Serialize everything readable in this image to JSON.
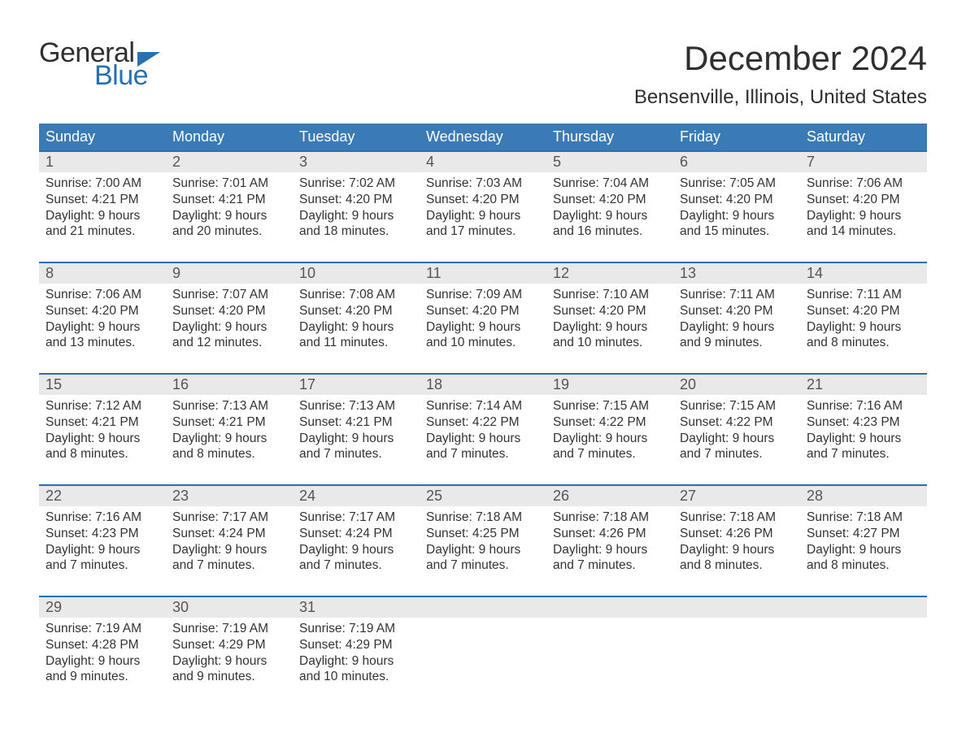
{
  "brand": {
    "part1": "General",
    "part2": "Blue",
    "flag_color": "#2a6fb0"
  },
  "header": {
    "month_title": "December 2024",
    "location": "Bensenville, Illinois, United States"
  },
  "colors": {
    "header_bg": "#3a7ab5",
    "week_border": "#2a6fb0",
    "daynum_bg": "#e9e9e9",
    "text": "#333333",
    "page_bg": "#ffffff"
  },
  "dow": [
    "Sunday",
    "Monday",
    "Tuesday",
    "Wednesday",
    "Thursday",
    "Friday",
    "Saturday"
  ],
  "weeks": [
    [
      {
        "n": "1",
        "sr": "Sunrise: 7:00 AM",
        "ss": "Sunset: 4:21 PM",
        "d1": "Daylight: 9 hours",
        "d2": "and 21 minutes."
      },
      {
        "n": "2",
        "sr": "Sunrise: 7:01 AM",
        "ss": "Sunset: 4:21 PM",
        "d1": "Daylight: 9 hours",
        "d2": "and 20 minutes."
      },
      {
        "n": "3",
        "sr": "Sunrise: 7:02 AM",
        "ss": "Sunset: 4:20 PM",
        "d1": "Daylight: 9 hours",
        "d2": "and 18 minutes."
      },
      {
        "n": "4",
        "sr": "Sunrise: 7:03 AM",
        "ss": "Sunset: 4:20 PM",
        "d1": "Daylight: 9 hours",
        "d2": "and 17 minutes."
      },
      {
        "n": "5",
        "sr": "Sunrise: 7:04 AM",
        "ss": "Sunset: 4:20 PM",
        "d1": "Daylight: 9 hours",
        "d2": "and 16 minutes."
      },
      {
        "n": "6",
        "sr": "Sunrise: 7:05 AM",
        "ss": "Sunset: 4:20 PM",
        "d1": "Daylight: 9 hours",
        "d2": "and 15 minutes."
      },
      {
        "n": "7",
        "sr": "Sunrise: 7:06 AM",
        "ss": "Sunset: 4:20 PM",
        "d1": "Daylight: 9 hours",
        "d2": "and 14 minutes."
      }
    ],
    [
      {
        "n": "8",
        "sr": "Sunrise: 7:06 AM",
        "ss": "Sunset: 4:20 PM",
        "d1": "Daylight: 9 hours",
        "d2": "and 13 minutes."
      },
      {
        "n": "9",
        "sr": "Sunrise: 7:07 AM",
        "ss": "Sunset: 4:20 PM",
        "d1": "Daylight: 9 hours",
        "d2": "and 12 minutes."
      },
      {
        "n": "10",
        "sr": "Sunrise: 7:08 AM",
        "ss": "Sunset: 4:20 PM",
        "d1": "Daylight: 9 hours",
        "d2": "and 11 minutes."
      },
      {
        "n": "11",
        "sr": "Sunrise: 7:09 AM",
        "ss": "Sunset: 4:20 PM",
        "d1": "Daylight: 9 hours",
        "d2": "and 10 minutes."
      },
      {
        "n": "12",
        "sr": "Sunrise: 7:10 AM",
        "ss": "Sunset: 4:20 PM",
        "d1": "Daylight: 9 hours",
        "d2": "and 10 minutes."
      },
      {
        "n": "13",
        "sr": "Sunrise: 7:11 AM",
        "ss": "Sunset: 4:20 PM",
        "d1": "Daylight: 9 hours",
        "d2": "and 9 minutes."
      },
      {
        "n": "14",
        "sr": "Sunrise: 7:11 AM",
        "ss": "Sunset: 4:20 PM",
        "d1": "Daylight: 9 hours",
        "d2": "and 8 minutes."
      }
    ],
    [
      {
        "n": "15",
        "sr": "Sunrise: 7:12 AM",
        "ss": "Sunset: 4:21 PM",
        "d1": "Daylight: 9 hours",
        "d2": "and 8 minutes."
      },
      {
        "n": "16",
        "sr": "Sunrise: 7:13 AM",
        "ss": "Sunset: 4:21 PM",
        "d1": "Daylight: 9 hours",
        "d2": "and 8 minutes."
      },
      {
        "n": "17",
        "sr": "Sunrise: 7:13 AM",
        "ss": "Sunset: 4:21 PM",
        "d1": "Daylight: 9 hours",
        "d2": "and 7 minutes."
      },
      {
        "n": "18",
        "sr": "Sunrise: 7:14 AM",
        "ss": "Sunset: 4:22 PM",
        "d1": "Daylight: 9 hours",
        "d2": "and 7 minutes."
      },
      {
        "n": "19",
        "sr": "Sunrise: 7:15 AM",
        "ss": "Sunset: 4:22 PM",
        "d1": "Daylight: 9 hours",
        "d2": "and 7 minutes."
      },
      {
        "n": "20",
        "sr": "Sunrise: 7:15 AM",
        "ss": "Sunset: 4:22 PM",
        "d1": "Daylight: 9 hours",
        "d2": "and 7 minutes."
      },
      {
        "n": "21",
        "sr": "Sunrise: 7:16 AM",
        "ss": "Sunset: 4:23 PM",
        "d1": "Daylight: 9 hours",
        "d2": "and 7 minutes."
      }
    ],
    [
      {
        "n": "22",
        "sr": "Sunrise: 7:16 AM",
        "ss": "Sunset: 4:23 PM",
        "d1": "Daylight: 9 hours",
        "d2": "and 7 minutes."
      },
      {
        "n": "23",
        "sr": "Sunrise: 7:17 AM",
        "ss": "Sunset: 4:24 PM",
        "d1": "Daylight: 9 hours",
        "d2": "and 7 minutes."
      },
      {
        "n": "24",
        "sr": "Sunrise: 7:17 AM",
        "ss": "Sunset: 4:24 PM",
        "d1": "Daylight: 9 hours",
        "d2": "and 7 minutes."
      },
      {
        "n": "25",
        "sr": "Sunrise: 7:18 AM",
        "ss": "Sunset: 4:25 PM",
        "d1": "Daylight: 9 hours",
        "d2": "and 7 minutes."
      },
      {
        "n": "26",
        "sr": "Sunrise: 7:18 AM",
        "ss": "Sunset: 4:26 PM",
        "d1": "Daylight: 9 hours",
        "d2": "and 7 minutes."
      },
      {
        "n": "27",
        "sr": "Sunrise: 7:18 AM",
        "ss": "Sunset: 4:26 PM",
        "d1": "Daylight: 9 hours",
        "d2": "and 8 minutes."
      },
      {
        "n": "28",
        "sr": "Sunrise: 7:18 AM",
        "ss": "Sunset: 4:27 PM",
        "d1": "Daylight: 9 hours",
        "d2": "and 8 minutes."
      }
    ],
    [
      {
        "n": "29",
        "sr": "Sunrise: 7:19 AM",
        "ss": "Sunset: 4:28 PM",
        "d1": "Daylight: 9 hours",
        "d2": "and 9 minutes."
      },
      {
        "n": "30",
        "sr": "Sunrise: 7:19 AM",
        "ss": "Sunset: 4:29 PM",
        "d1": "Daylight: 9 hours",
        "d2": "and 9 minutes."
      },
      {
        "n": "31",
        "sr": "Sunrise: 7:19 AM",
        "ss": "Sunset: 4:29 PM",
        "d1": "Daylight: 9 hours",
        "d2": "and 10 minutes."
      },
      null,
      null,
      null,
      null
    ]
  ]
}
